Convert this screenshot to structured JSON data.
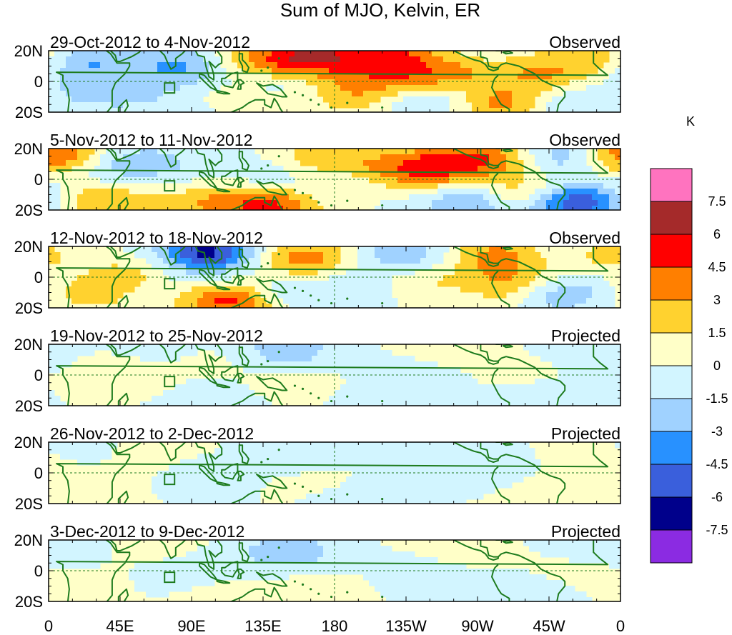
{
  "title": "Sum of MJO, Kelvin, ER",
  "colorbar": {
    "unit": "K",
    "labels": [
      "7.5",
      "6",
      "4.5",
      "3",
      "1.5",
      "0",
      "-1.5",
      "-3",
      "-4.5",
      "-6",
      "-7.5"
    ],
    "colors": [
      "#ff73bf",
      "#a52a2a",
      "#ff0000",
      "#ff7f00",
      "#ffd22f",
      "#ffffc8",
      "#d2f5ff",
      "#a0d2ff",
      "#2891ff",
      "#3a5fdc",
      "#00008b",
      "#8b2be2"
    ]
  },
  "y_ticks": [
    "20N",
    "0",
    "20S"
  ],
  "x_ticks": [
    "0",
    "45E",
    "90E",
    "135E",
    "180",
    "135W",
    "90W",
    "45W",
    "0"
  ],
  "panels": [
    {
      "dates": "29-Oct-2012 to 4-Nov-2012",
      "status": "Observed"
    },
    {
      "dates": "5-Nov-2012 to 11-Nov-2012",
      "status": "Observed"
    },
    {
      "dates": "12-Nov-2012 to 18-Nov-2012",
      "status": "Observed"
    },
    {
      "dates": "19-Nov-2012 to 25-Nov-2012",
      "status": "Projected"
    },
    {
      "dates": "26-Nov-2012 to 2-Dec-2012",
      "status": "Projected"
    },
    {
      "dates": "3-Dec-2012 to 9-Dec-2012",
      "status": "Projected"
    }
  ],
  "anomalies": [
    [
      [
        165,
        16,
        6
      ],
      [
        125,
        13,
        2.5
      ],
      [
        215,
        18,
        4
      ],
      [
        248,
        4,
        3.5
      ],
      [
        120,
        -15,
        3
      ],
      [
        210,
        0,
        2.8
      ],
      [
        290,
        -15,
        4
      ],
      [
        310,
        5,
        3
      ],
      [
        350,
        18,
        3
      ],
      [
        190,
        -10,
        2
      ],
      [
        85,
        10,
        -3.5
      ],
      [
        20,
        15,
        -3.5
      ],
      [
        30,
        -5,
        -2
      ],
      [
        320,
        -15,
        -2.5
      ],
      [
        110,
        -20,
        -2
      ],
      [
        235,
        -10,
        -2.5
      ],
      [
        140,
        -5,
        -1.5
      ],
      [
        60,
        -10,
        -1
      ]
    ],
    [
      [
        5,
        16,
        5
      ],
      [
        140,
        -18,
        4.5
      ],
      [
        170,
        12,
        3.5
      ],
      [
        235,
        5,
        3.5
      ],
      [
        300,
        -10,
        3.5
      ],
      [
        35,
        -15,
        3
      ],
      [
        100,
        -15,
        2.5
      ],
      [
        280,
        14,
        3
      ],
      [
        255,
        12,
        2.5
      ],
      [
        200,
        8,
        2.5
      ],
      [
        330,
        -15,
        -6.5
      ],
      [
        265,
        -15,
        -3.5
      ],
      [
        325,
        15,
        -3
      ],
      [
        185,
        5,
        -2.5
      ],
      [
        40,
        10,
        -2
      ],
      [
        140,
        5,
        -1.5
      ],
      [
        70,
        10,
        -1.5
      ]
    ],
    [
      [
        120,
        -15,
        4.5
      ],
      [
        160,
        12,
        4
      ],
      [
        280,
        14,
        3.5
      ],
      [
        295,
        -5,
        3.5
      ],
      [
        345,
        15,
        3.5
      ],
      [
        55,
        0,
        2.5
      ],
      [
        230,
        -2,
        2
      ],
      [
        25,
        -12,
        2
      ],
      [
        95,
        -15,
        2
      ],
      [
        100,
        16,
        -6.5
      ],
      [
        320,
        -10,
        -3.5
      ],
      [
        225,
        14,
        -3
      ],
      [
        145,
        -10,
        -2.5
      ],
      [
        75,
        -8,
        -2
      ],
      [
        200,
        -5,
        -1.5
      ],
      [
        335,
        16,
        -2
      ]
    ],
    [
      [
        50,
        0,
        1.2
      ],
      [
        160,
        -5,
        0.8
      ],
      [
        250,
        14,
        0.8
      ],
      [
        20,
        15,
        0.6
      ],
      [
        300,
        -5,
        0.6
      ],
      [
        110,
        8,
        0.5
      ],
      [
        150,
        16,
        -2.5
      ],
      [
        355,
        18,
        -1.6
      ],
      [
        230,
        0,
        -1
      ],
      [
        310,
        -15,
        -1.2
      ],
      [
        60,
        15,
        -0.8
      ],
      [
        100,
        -15,
        -0.8
      ],
      [
        210,
        -15,
        -0.8
      ]
    ],
    [
      [
        60,
        14,
        1
      ],
      [
        170,
        -5,
        0.8
      ],
      [
        350,
        5,
        0.6
      ],
      [
        305,
        -16,
        1.2
      ],
      [
        120,
        8,
        0.5
      ],
      [
        25,
        -10,
        0.6
      ],
      [
        150,
        12,
        -1.6
      ],
      [
        230,
        10,
        -1
      ],
      [
        100,
        0,
        -0.9
      ],
      [
        280,
        -5,
        -0.8
      ],
      [
        30,
        15,
        -0.8
      ],
      [
        190,
        -14,
        -0.8
      ]
    ],
    [
      [
        60,
        16,
        1.2
      ],
      [
        170,
        -10,
        0.8
      ],
      [
        250,
        14,
        0.7
      ],
      [
        110,
        -15,
        0.6
      ],
      [
        330,
        0,
        0.5
      ],
      [
        20,
        -8,
        0.5
      ],
      [
        150,
        12,
        -2.6
      ],
      [
        350,
        18,
        -1.2
      ],
      [
        85,
        0,
        -0.9
      ],
      [
        230,
        0,
        -0.9
      ],
      [
        30,
        15,
        -0.7
      ],
      [
        300,
        -15,
        -0.8
      ]
    ]
  ]
}
